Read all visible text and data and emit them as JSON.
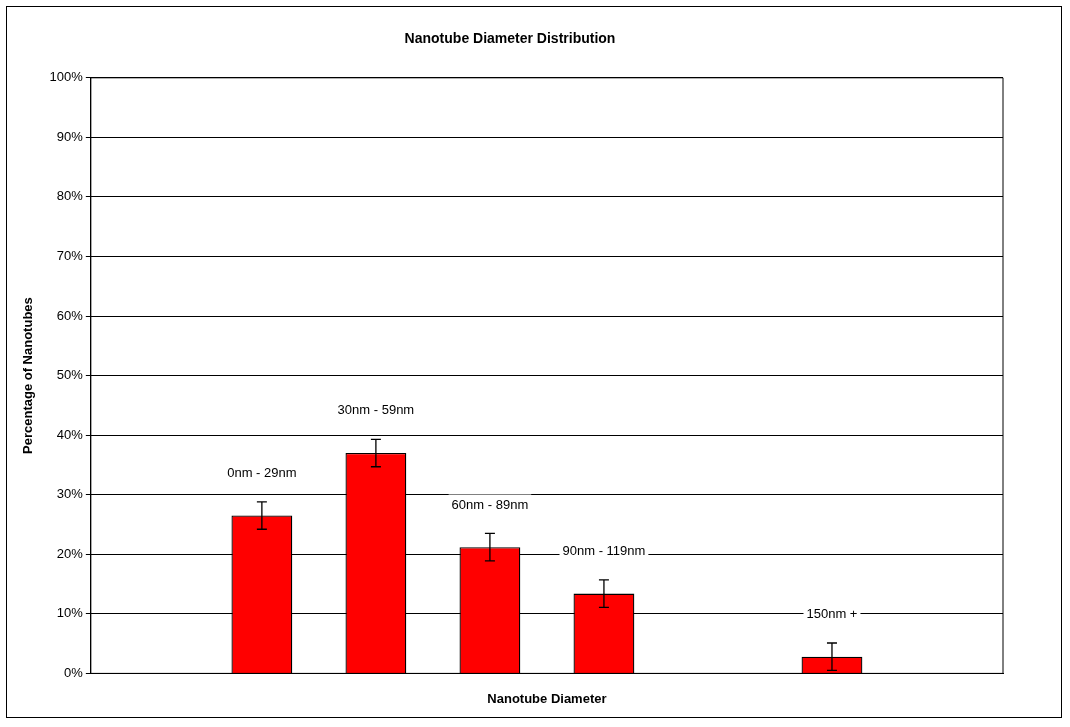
{
  "chart_data": {
    "type": "bar",
    "title": "Nanotube Diameter Distribution",
    "xlabel": "Nanotube Diameter",
    "ylabel": "Percentage of Nanotubes",
    "categories": [
      null,
      "0nm - 29nm",
      "30nm - 59nm",
      "60nm - 89nm",
      "90nm - 119nm",
      null,
      "150nm +",
      null
    ],
    "values": [
      null,
      26.5,
      37.0,
      21.2,
      13.4,
      null,
      2.8,
      null
    ],
    "errors": [
      null,
      2.3,
      2.3,
      2.3,
      2.3,
      null,
      2.3,
      null
    ],
    "color": "#ff0000",
    "ylim": [
      0,
      100
    ],
    "yticks": [
      {
        "value": 0,
        "label": "0%"
      },
      {
        "value": 10,
        "label": "10%"
      },
      {
        "value": 20,
        "label": "20%"
      },
      {
        "value": 30,
        "label": "30%"
      },
      {
        "value": 40,
        "label": "40%"
      },
      {
        "value": 50,
        "label": "50%"
      },
      {
        "value": 60,
        "label": "60%"
      },
      {
        "value": 70,
        "label": "70%"
      },
      {
        "value": 80,
        "label": "80%"
      },
      {
        "value": 90,
        "label": "90%"
      },
      {
        "value": 100,
        "label": "100%"
      }
    ],
    "grid": "y",
    "legend": false
  }
}
